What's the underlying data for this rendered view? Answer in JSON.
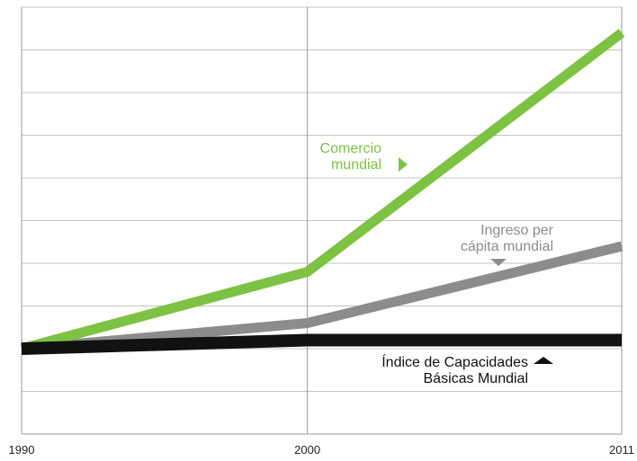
{
  "chart_data": {
    "type": "line",
    "x": [
      1990,
      2000,
      2011
    ],
    "x_tick_labels": [
      "1990",
      "2000",
      "2011"
    ],
    "xlim": [
      1990,
      2011
    ],
    "ylim": [
      -2,
      8
    ],
    "y_tick_labels_shown": false,
    "grid": "horizontal",
    "legend": "none (inline labels)",
    "series": [
      {
        "key": "comercio",
        "color": "#7dc242",
        "values": [
          0,
          1.8,
          7.4
        ],
        "label_lines": [
          "Comercio",
          "mundial"
        ],
        "marker": "triangle-right"
      },
      {
        "key": "ingreso",
        "color": "#8c8c8c",
        "values": [
          0,
          0.6,
          2.4
        ],
        "label_lines": [
          "Ingreso per",
          "cápita mundial"
        ],
        "marker": "triangle-down"
      },
      {
        "key": "icb",
        "color": "#111111",
        "values": [
          0,
          0.2,
          0.2
        ],
        "label_lines": [
          "Índice de Capacidades",
          "Básicas Mundial"
        ],
        "marker": "triangle-up"
      }
    ]
  }
}
